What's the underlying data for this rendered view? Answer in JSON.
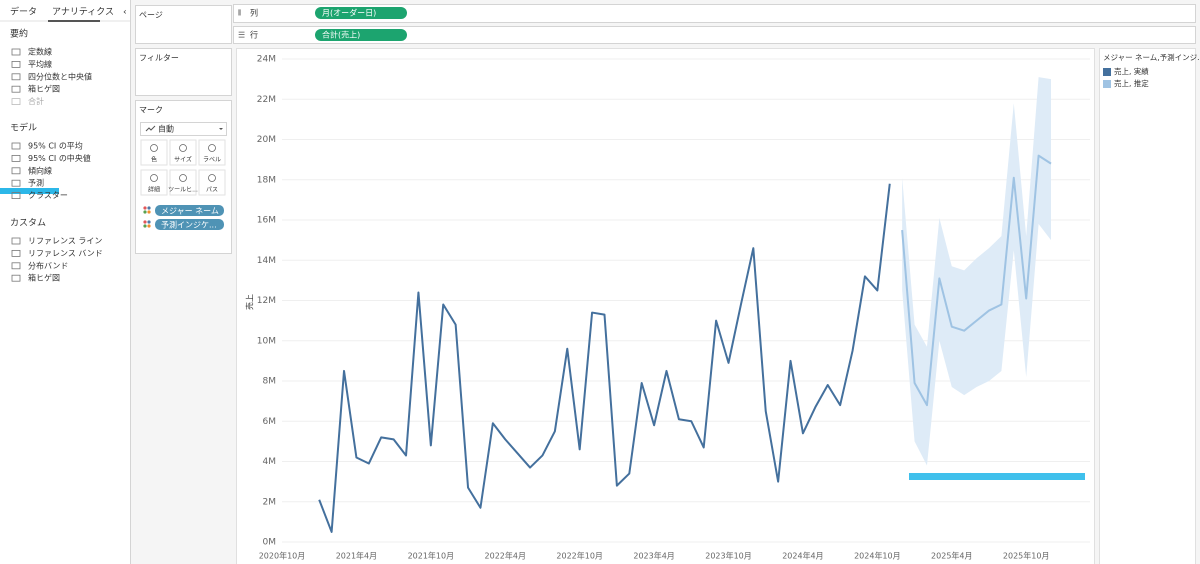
{
  "ui": {
    "tabs": [
      "データ",
      "アナリティクス"
    ],
    "analytics": [
      {
        "heading": "要約",
        "items": [
          "定数線",
          "平均線",
          "四分位数と中央値",
          "箱ヒゲ図",
          "合計"
        ]
      },
      {
        "heading": "モデル",
        "items": [
          "95% CI の平均",
          "95% CI の中央値",
          "傾向線",
          "予測",
          "クラスター"
        ]
      },
      {
        "heading": "カスタム",
        "items": [
          "リファレンス ライン",
          "リファレンス バンド",
          "分布バンド",
          "箱ヒゲ図"
        ]
      }
    ],
    "cards": {
      "pages": "ページ",
      "filters": "フィルター",
      "marks": "マーク",
      "mark_type": "自動",
      "mark_buttons": [
        "色",
        "サイズ",
        "ラベル",
        "詳細",
        "ツールヒ...",
        "パス"
      ],
      "pills": [
        "メジャー ネーム",
        "予測インジケ..."
      ]
    },
    "shelves": [
      {
        "label": "列",
        "pill": "月(オーダー日)"
      },
      {
        "label": "行",
        "pill": "合計(売上)"
      }
    ]
  },
  "chart_data": {
    "type": "line",
    "y_label": "売上",
    "legend_title": "メジャー ネーム,予測インジ...",
    "legend": "right",
    "grid": true,
    "x": [
      "2021-01",
      "2021-02",
      "2021-03",
      "2021-04",
      "2021-05",
      "2021-06",
      "2021-07",
      "2021-08",
      "2021-09",
      "2021-10",
      "2021-11",
      "2021-12",
      "2022-01",
      "2022-02",
      "2022-03",
      "2022-04",
      "2022-05",
      "2022-06",
      "2022-07",
      "2022-08",
      "2022-09",
      "2022-10",
      "2022-11",
      "2022-12",
      "2023-01",
      "2023-02",
      "2023-03",
      "2023-04",
      "2023-05",
      "2023-06",
      "2023-07",
      "2023-08",
      "2023-09",
      "2023-10",
      "2023-11",
      "2023-12",
      "2024-01",
      "2024-02",
      "2024-03",
      "2024-04",
      "2024-05",
      "2024-06",
      "2024-07",
      "2024-08",
      "2024-09",
      "2024-10",
      "2024-11",
      "2024-12",
      "2025-01",
      "2025-02",
      "2025-03",
      "2025-04",
      "2025-05",
      "2025-06",
      "2025-07",
      "2025-08",
      "2025-09",
      "2025-10",
      "2025-11",
      "2025-12"
    ],
    "xlim": [
      "2020-10",
      "2025-12"
    ],
    "xticks": [
      {
        "value": "2020-10",
        "label": "2020年10月"
      },
      {
        "value": "2021-04",
        "label": "2021年4月"
      },
      {
        "value": "2021-10",
        "label": "2021年10月"
      },
      {
        "value": "2022-04",
        "label": "2022年4月"
      },
      {
        "value": "2022-10",
        "label": "2022年10月"
      },
      {
        "value": "2023-04",
        "label": "2023年4月"
      },
      {
        "value": "2023-10",
        "label": "2023年10月"
      },
      {
        "value": "2024-04",
        "label": "2024年4月"
      },
      {
        "value": "2024-10",
        "label": "2024年10月"
      },
      {
        "value": "2025-04",
        "label": "2025年4月"
      },
      {
        "value": "2025-10",
        "label": "2025年10月"
      }
    ],
    "ylim": [
      0,
      24
    ],
    "yticks": [
      {
        "value": 0,
        "label": "0M"
      },
      {
        "value": 2,
        "label": "2M"
      },
      {
        "value": 4,
        "label": "4M"
      },
      {
        "value": 6,
        "label": "6M"
      },
      {
        "value": 8,
        "label": "8M"
      },
      {
        "value": 10,
        "label": "10M"
      },
      {
        "value": 12,
        "label": "12M"
      },
      {
        "value": 14,
        "label": "14M"
      },
      {
        "value": 16,
        "label": "16M"
      },
      {
        "value": 18,
        "label": "18M"
      },
      {
        "value": 20,
        "label": "20M"
      },
      {
        "value": 22,
        "label": "22M"
      },
      {
        "value": 24,
        "label": "24M"
      }
    ],
    "series": [
      {
        "name": "売上, 実績",
        "color": "#44709d",
        "values": [
          2.1,
          0.5,
          8.5,
          4.2,
          3.9,
          5.2,
          5.1,
          4.3,
          12.4,
          4.8,
          11.8,
          10.8,
          2.7,
          1.7,
          5.9,
          5.1,
          4.4,
          3.7,
          4.3,
          5.5,
          9.6,
          4.6,
          11.4,
          11.3,
          2.8,
          3.4,
          7.9,
          5.8,
          8.5,
          6.1,
          6.0,
          4.7,
          11.0,
          8.9,
          11.8,
          14.6,
          6.5,
          3.0,
          9.0,
          5.4,
          6.7,
          7.8,
          6.8,
          9.5,
          13.2,
          12.5,
          17.8,
          null,
          null,
          null,
          null,
          null,
          null,
          null,
          null,
          null,
          null,
          null,
          null,
          null
        ]
      },
      {
        "name": "売上, 推定",
        "color": "#9fc3e3",
        "values": [
          null,
          null,
          null,
          null,
          null,
          null,
          null,
          null,
          null,
          null,
          null,
          null,
          null,
          null,
          null,
          null,
          null,
          null,
          null,
          null,
          null,
          null,
          null,
          null,
          null,
          null,
          null,
          null,
          null,
          null,
          null,
          null,
          null,
          null,
          null,
          null,
          null,
          null,
          null,
          null,
          null,
          null,
          null,
          null,
          null,
          null,
          null,
          15.5,
          7.9,
          6.8,
          13.1,
          10.7,
          10.5,
          11.0,
          11.5,
          11.8,
          18.1,
          12.1,
          19.2,
          18.8
        ]
      }
    ],
    "band": {
      "color": "#deebf7",
      "upper": [
        null,
        null,
        null,
        null,
        null,
        null,
        null,
        null,
        null,
        null,
        null,
        null,
        null,
        null,
        null,
        null,
        null,
        null,
        null,
        null,
        null,
        null,
        null,
        null,
        null,
        null,
        null,
        null,
        null,
        null,
        null,
        null,
        null,
        null,
        null,
        null,
        null,
        null,
        null,
        null,
        null,
        null,
        null,
        null,
        null,
        null,
        null,
        18.1,
        10.8,
        9.7,
        16.1,
        13.7,
        13.5,
        14.1,
        14.6,
        15.2,
        21.8,
        15.2,
        23.1,
        23.0
      ],
      "lower": [
        null,
        null,
        null,
        null,
        null,
        null,
        null,
        null,
        null,
        null,
        null,
        null,
        null,
        null,
        null,
        null,
        null,
        null,
        null,
        null,
        null,
        null,
        null,
        null,
        null,
        null,
        null,
        null,
        null,
        null,
        null,
        null,
        null,
        null,
        null,
        null,
        null,
        null,
        null,
        null,
        null,
        null,
        null,
        null,
        null,
        null,
        null,
        12.5,
        5.0,
        3.8,
        10.0,
        7.7,
        7.3,
        7.7,
        8.0,
        8.5,
        14.5,
        8.2,
        15.8,
        15.0
      ]
    }
  }
}
